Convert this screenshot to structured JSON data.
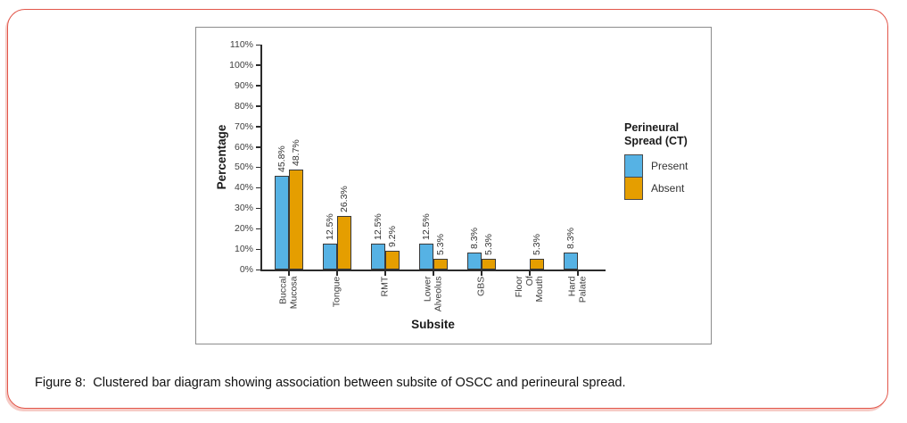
{
  "page": {
    "caption": "Figure 8:  Clustered bar diagram showing association between subsite of OSCC and perineural spread.",
    "frame_color": "#e2564a"
  },
  "chart_data": {
    "type": "bar",
    "title": "",
    "xlabel": "Subsite",
    "ylabel": "Percentage",
    "ylim": [
      0,
      110
    ],
    "ytick_step": 10,
    "ytick_suffix": "%",
    "value_suffix": "%",
    "grid": false,
    "legend_title": "Perineural Spread (CT)",
    "legend_position": "right",
    "categories": [
      "Buccal Mucosa",
      "Tongue",
      "RMT",
      "Lower Alveolus",
      "GBS",
      "Floor Of Mouth",
      "Hard Palate"
    ],
    "category_label_lines": [
      [
        "Buccal",
        "Mucosa"
      ],
      [
        "Tongue"
      ],
      [
        "RMT"
      ],
      [
        "Lower",
        "Alveolus"
      ],
      [
        "GBS"
      ],
      [
        "Floor",
        "Of",
        "Mouth"
      ],
      [
        "Hard",
        "Palate"
      ]
    ],
    "series": [
      {
        "name": "Present",
        "color": "#56b2e4",
        "values": [
          45.8,
          12.5,
          12.5,
          12.5,
          8.3,
          null,
          8.3
        ]
      },
      {
        "name": "Absent",
        "color": "#e59e00",
        "values": [
          48.7,
          26.3,
          9.2,
          5.3,
          5.3,
          5.3,
          null
        ]
      }
    ]
  }
}
